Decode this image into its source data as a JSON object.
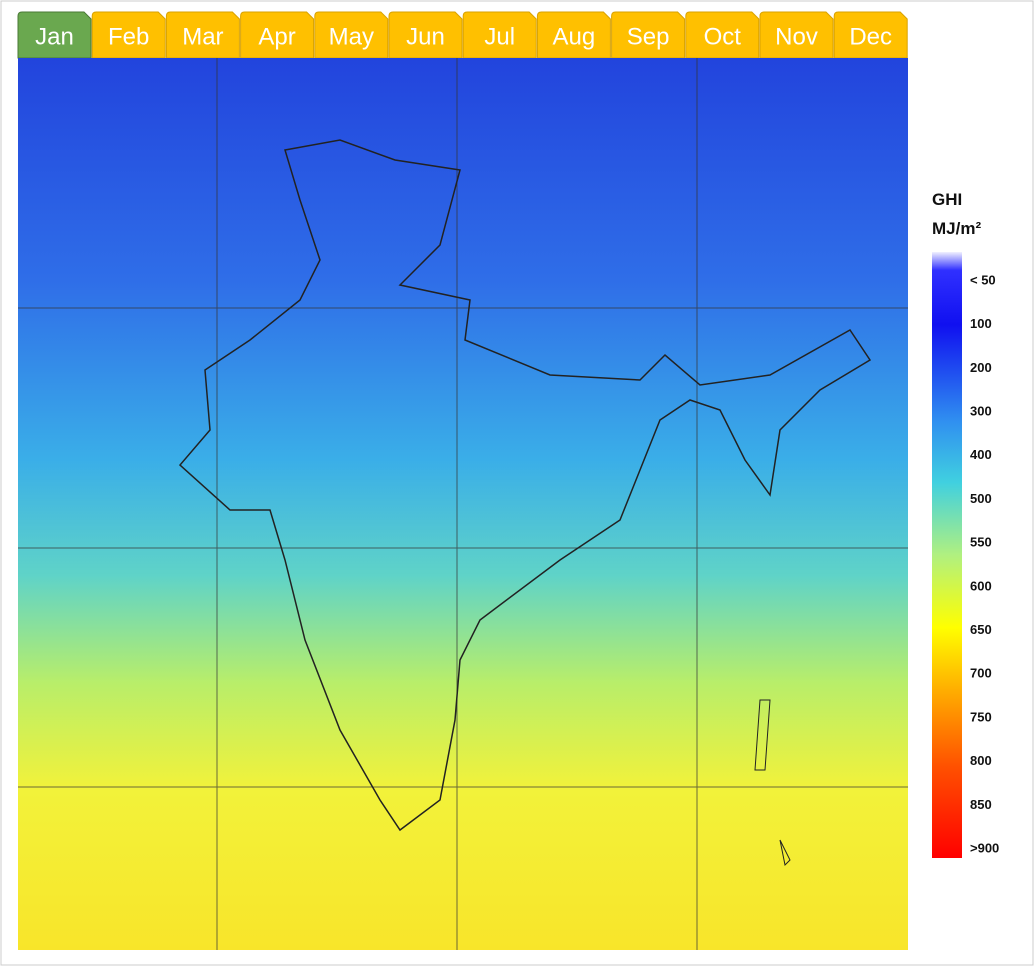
{
  "tabs": {
    "selected": "Jan",
    "months": [
      "Jan",
      "Feb",
      "Mar",
      "Apr",
      "May",
      "Jun",
      "Jul",
      "Aug",
      "Sep",
      "Oct",
      "Nov",
      "Dec"
    ]
  },
  "legend": {
    "title": "GHI",
    "unit": "MJ/m²",
    "labels": [
      "< 50",
      "100",
      "200",
      "300",
      "400",
      "500",
      "550",
      "600",
      "650",
      "700",
      "750",
      "800",
      "850",
      ">900"
    ]
  }
}
